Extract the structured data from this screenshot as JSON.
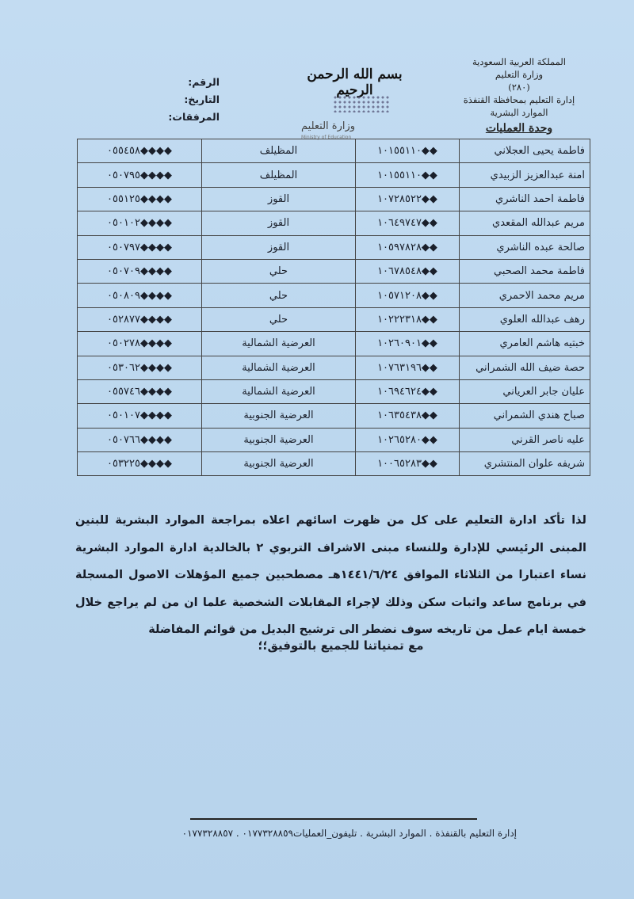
{
  "header": {
    "right_lines": [
      "المملكة العربية السعودية",
      "وزارة التعليم",
      "(٢٨٠)",
      "إدارة التعليم بمحافظة القنفذة",
      "الموارد البشرية"
    ],
    "unit": "وحدة العمليات",
    "basmala": "بسم الله الرحمن الرحيم",
    "logo_name": "وزارة التعليم",
    "logo_en": "Ministry of Education",
    "left_labels": [
      "الرقم:",
      "التاريخ:",
      "المرفقات:"
    ]
  },
  "table": {
    "rows": [
      {
        "name": "فاطمة يحيى العجلاني",
        "id": "١٠١٥٥١١٠◆◆",
        "area": "المظيلف",
        "phone": "٠٥٥٤٥٨◆◆◆◆"
      },
      {
        "name": "امنة عبدالعزيز الزبيدي",
        "id": "١٠١٥٥١١٠◆◆",
        "area": "المظيلف",
        "phone": "٠٥٠٧٩٥◆◆◆◆"
      },
      {
        "name": "فاطمة احمد الناشري",
        "id": "١٠٧٢٨٥٢٢◆◆",
        "area": "القوز",
        "phone": "٠٥٥١٢٥◆◆◆◆"
      },
      {
        "name": "مريم عبدالله المقعدي",
        "id": "١٠٦٤٩٧٤٧◆◆",
        "area": "القوز",
        "phone": "٠٥٠١٠٢◆◆◆◆"
      },
      {
        "name": "صالحة عبده الناشري",
        "id": "١٠٥٩٧٨٢٨◆◆",
        "area": "القوز",
        "phone": "٠٥٠٧٩٧◆◆◆◆"
      },
      {
        "name": "فاطمة محمد الصحبي",
        "id": "١٠٦٧٨٥٤٨◆◆",
        "area": "حلي",
        "phone": "٠٥٠٧٠٩◆◆◆◆"
      },
      {
        "name": "مريم محمد الاحمري",
        "id": "١٠٥٧١٢٠٨◆◆",
        "area": "حلي",
        "phone": "٠٥٠٨٠٩◆◆◆◆"
      },
      {
        "name": "رهف عبدالله العلوي",
        "id": "١٠٢٢٢٣١٨◆◆",
        "area": "حلي",
        "phone": "٠٥٢٨٧٧◆◆◆◆"
      },
      {
        "name": "خبتيه هاشم العامري",
        "id": "١٠٢٦٠٩٠١◆◆",
        "area": "العرضية الشمالية",
        "phone": "٠٥٠٢٧٨◆◆◆◆"
      },
      {
        "name": "حصة ضيف الله الشمراني",
        "id": "١٠٧٦٣١٩٦◆◆",
        "area": "العرضية الشمالية",
        "phone": "٠٥٣٠٦٢◆◆◆◆"
      },
      {
        "name": "عليان جابر العرياني",
        "id": "١٠٦٩٤٦٢٤◆◆",
        "area": "العرضية الشمالية",
        "phone": "٠٥٥٧٤٦◆◆◆◆"
      },
      {
        "name": "صباح هندي الشمراني",
        "id": "١٠٦٣٥٤٣٨◆◆",
        "area": "العرضية الجنوبية",
        "phone": "٠٥٠١٠٧◆◆◆◆"
      },
      {
        "name": "عليه ناصر القرني",
        "id": "١٠٢٦٥٢٨٠◆◆",
        "area": "العرضية الجنوبية",
        "phone": "٠٥٠٧٦٦◆◆◆◆"
      },
      {
        "name": "شريفه علوان المنتشري",
        "id": "١٠٠٦٥٢٨٣◆◆",
        "area": "العرضية الجنوبية",
        "phone": "٠٥٣٢٢٥◆◆◆◆"
      }
    ]
  },
  "body": {
    "paragraph": "لذا تأكد ادارة التعليم على كل من ظهرت اسائهم اعلاه بمراجعة الموارد البشرية للبنين المبنى الرئيسي للإدارة وللنساء مبنى الاشراف التربوي ٢ بالخالدية ادارة الموارد البشرية نساء اعتبارا من الثلاثاء الموافق ١٤٤١/٦/٢٤هـ مصطحبين جميع المؤهلات الاصول المسجلة في برنامج ساعد واثبات سكن وذلك لإجراء المقابلات الشخصية علما ان من لم يراجع خلال خمسة ايام عمل من تاريخه سوف نضطر الى ترشيح البديل من قوائم المفاضلة",
    "closing": "مع تمنياتنا للجميع بالتوفيق؛؛"
  },
  "footer": {
    "text": "إدارة التعليم بالقنفذة . الموارد البشرية . تليفون_العمليات٠١٧٧٣٢٨٨٥٩ . ٠١٧٧٣٢٨٨٥٧"
  }
}
